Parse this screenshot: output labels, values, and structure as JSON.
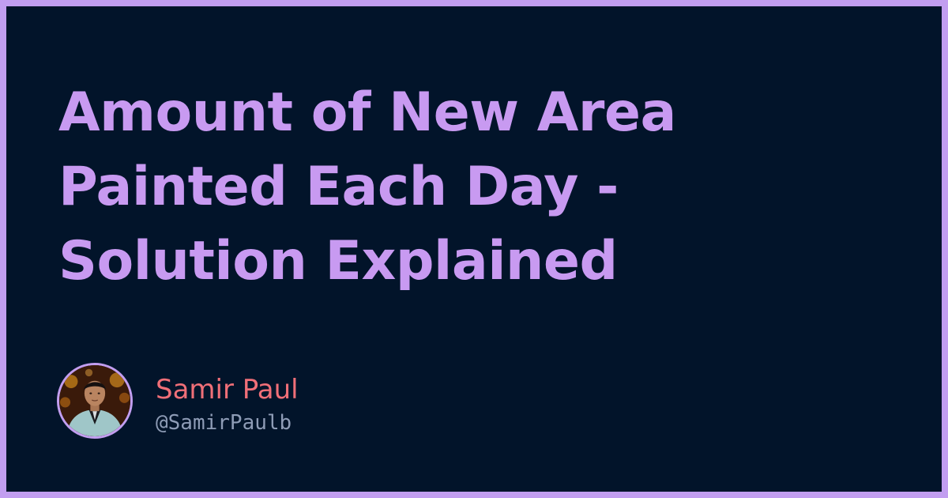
{
  "post": {
    "title": "Amount of New Area Painted Each Day - Solution Explained"
  },
  "author": {
    "name": "Samir Paul",
    "handle": "@SamirPaulb",
    "avatar_icon": "avatar-photo"
  },
  "colors": {
    "frame": "#c29ef0",
    "background": "#02142a",
    "title": "#c89af1",
    "name": "#f06f78",
    "handle": "#8e9cb6"
  }
}
